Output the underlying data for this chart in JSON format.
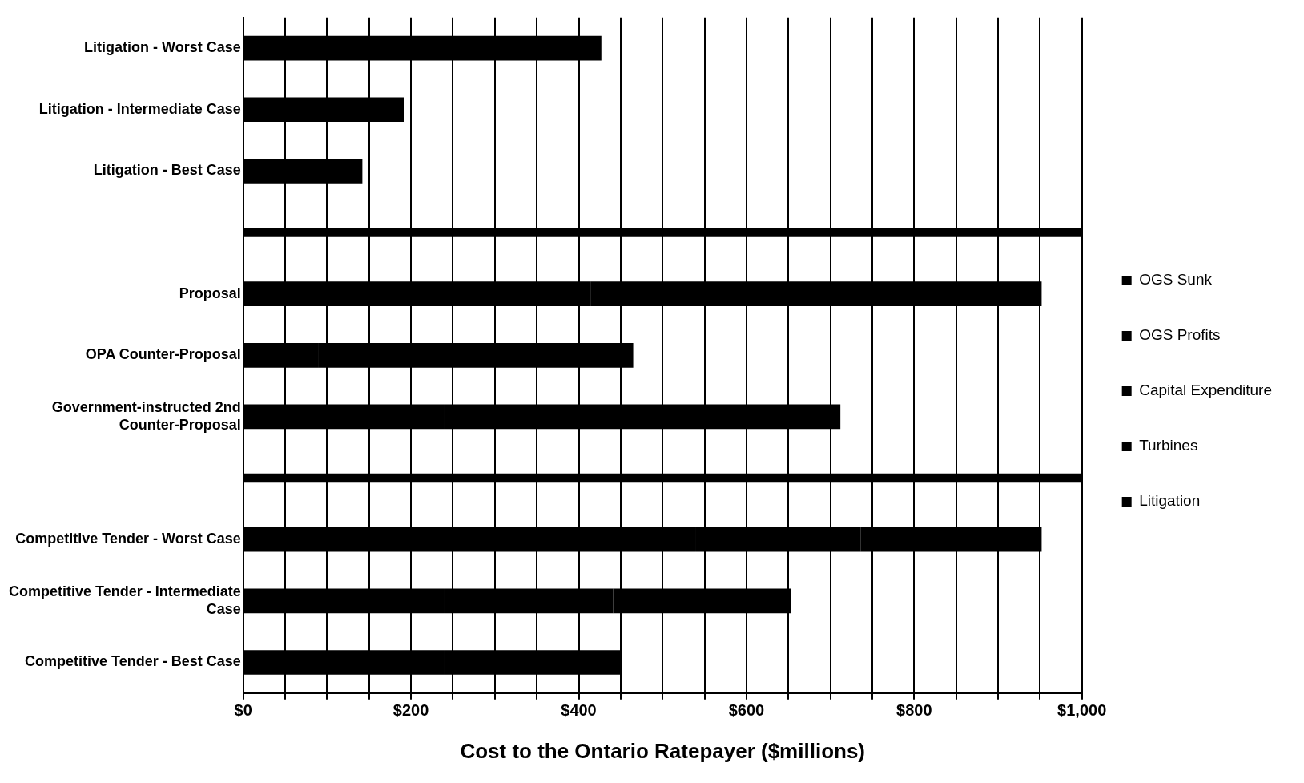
{
  "chart_data": {
    "type": "bar",
    "orientation": "horizontal",
    "stacked": true,
    "xlabel": "Cost to the Ontario Ratepayer ($millions)",
    "categories": [
      "Litigation - Worst Case",
      "Litigation - Intermediate Case",
      "Litigation - Best Case",
      null,
      "Proposal",
      "OPA Counter-Proposal",
      "Government-instructed 2nd Counter-Proposal",
      null,
      "Competitive Tender - Worst Case",
      "Competitive Tender - Intermediate Case",
      "Competitive Tender - Best Case"
    ],
    "series": [
      {
        "name": "OGS Sunk",
        "color": "#000000",
        "values": [
          null,
          null,
          null,
          null,
          414,
          90,
          240,
          null,
          null,
          null,
          39
        ]
      },
      {
        "name": "OGS Profits",
        "color": "#000000",
        "values": [
          null,
          null,
          null,
          null,
          538,
          375,
          472,
          null,
          null,
          null,
          null
        ]
      },
      {
        "name": "Capital Expenditure",
        "color": "#000000",
        "values": [
          null,
          null,
          null,
          null,
          null,
          null,
          null,
          null,
          539,
          240,
          201
        ]
      },
      {
        "name": "Turbines",
        "color": "#000000",
        "values": [
          null,
          null,
          null,
          null,
          null,
          null,
          null,
          null,
          197,
          201,
          212
        ]
      },
      {
        "name": "Litigation",
        "color": "#000000",
        "values": [
          427,
          192,
          142,
          null,
          null,
          null,
          null,
          null,
          216,
          212,
          null
        ]
      },
      {
        "color": "#000000",
        "values": [
          null,
          null,
          null,
          1000,
          null,
          null,
          null,
          1000,
          null,
          null,
          null
        ]
      }
    ],
    "xlim": [
      0,
      1000
    ],
    "xticks": [
      {
        "value": 0,
        "label": "$0"
      },
      {
        "value": 50,
        "label": null
      },
      {
        "value": 100,
        "label": null
      },
      {
        "value": 150,
        "label": null
      },
      {
        "value": 200,
        "label": "$200"
      },
      {
        "value": 250,
        "label": null
      },
      {
        "value": 300,
        "label": null
      },
      {
        "value": 350,
        "label": null
      },
      {
        "value": 400,
        "label": "$400"
      },
      {
        "value": 450,
        "label": null
      },
      {
        "value": 500,
        "label": null
      },
      {
        "value": 550,
        "label": null
      },
      {
        "value": 600,
        "label": "$600"
      },
      {
        "value": 650,
        "label": null
      },
      {
        "value": 700,
        "label": null
      },
      {
        "value": 750,
        "label": null
      },
      {
        "value": 800,
        "label": "$800"
      },
      {
        "value": 850,
        "label": null
      },
      {
        "value": 900,
        "label": null
      },
      {
        "value": 950,
        "label": null
      },
      {
        "value": 1000,
        "label": "$1,000"
      }
    ],
    "grid": "x",
    "legend": "right"
  }
}
